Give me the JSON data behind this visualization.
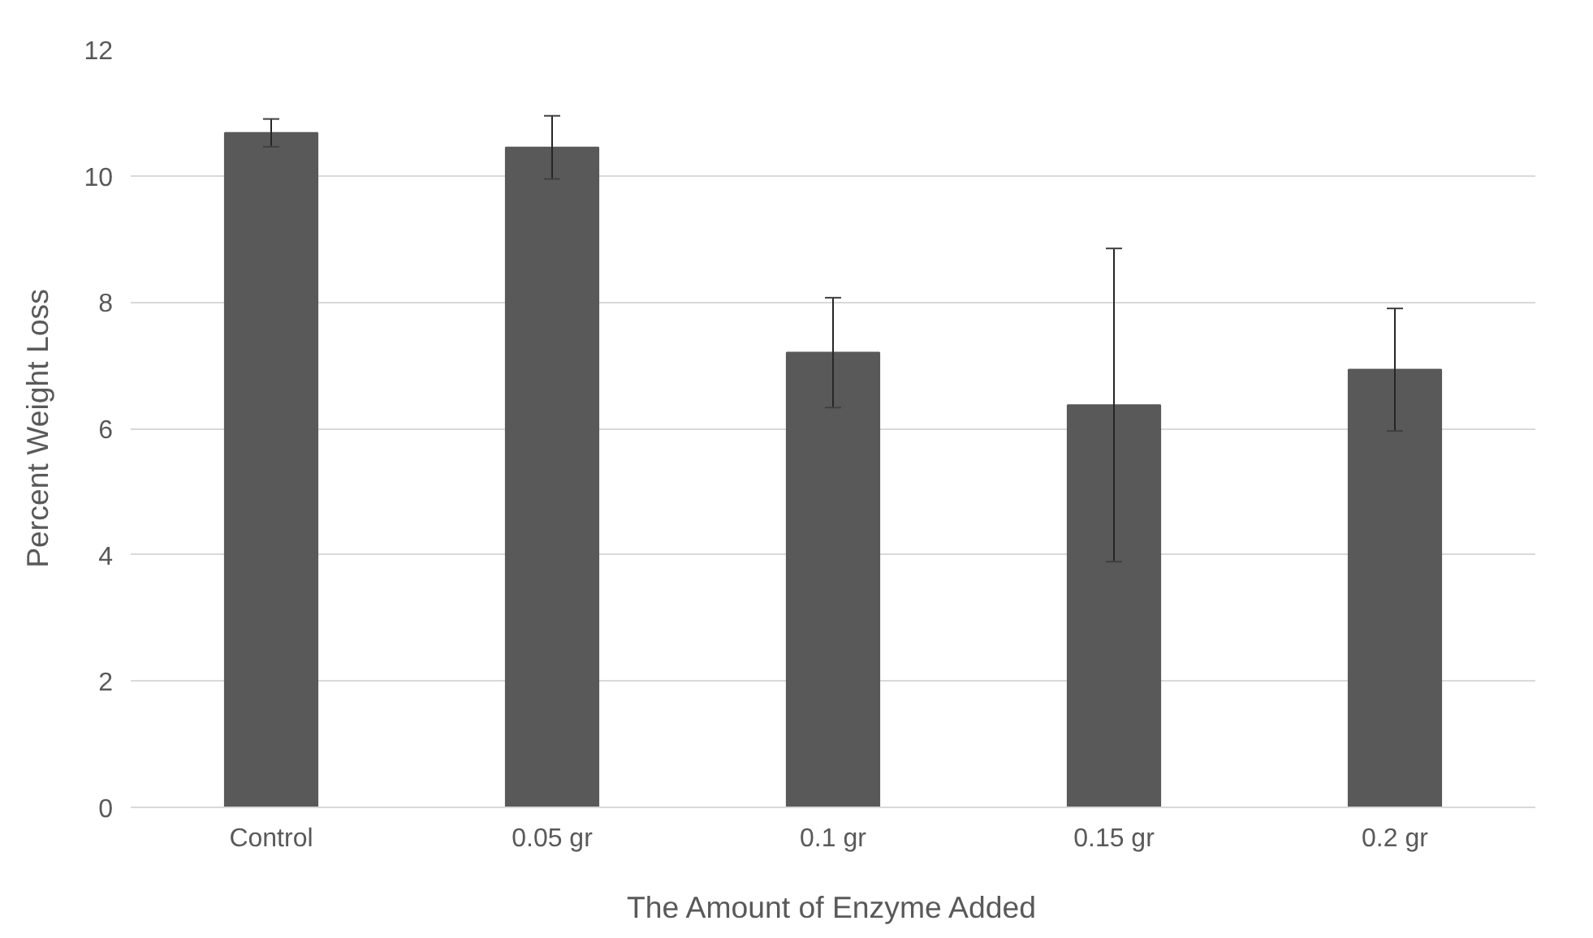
{
  "chart_data": {
    "type": "bar",
    "xlabel": "The Amount of Enzyme Added",
    "ylabel": "Percent Weight Loss",
    "categories": [
      "Control",
      "0.05 gr",
      "0.1 gr",
      "0.15 gr",
      "0.2 gr"
    ],
    "values": [
      10.68,
      10.45,
      7.2,
      6.37,
      6.93
    ],
    "errors": [
      0.22,
      0.5,
      0.87,
      2.48,
      0.97
    ],
    "color": "#595959",
    "ylim": [
      0,
      12
    ],
    "yticks": [
      0,
      2,
      4,
      6,
      8,
      10,
      12
    ],
    "grid": "y"
  }
}
